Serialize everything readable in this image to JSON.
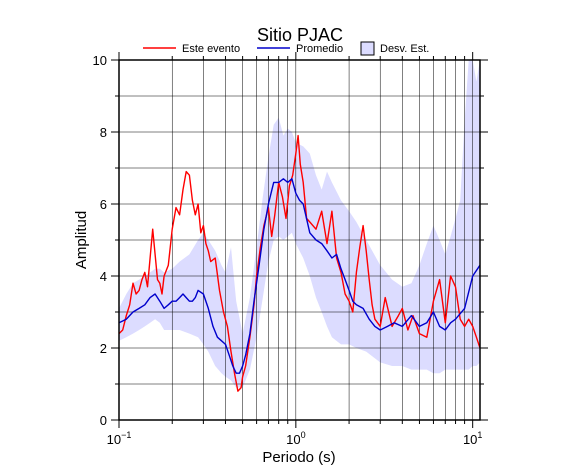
{
  "chart_data": {
    "type": "line",
    "title": "Sitio PJAC",
    "xlabel": "Periodo (s)",
    "ylabel": "Amplitud",
    "xscale": "log",
    "xlim": [
      0.1,
      11
    ],
    "ylim": [
      0,
      10
    ],
    "grid": true,
    "legend_position": "top-center",
    "x_tick_labels": [
      {
        "value": 0.1,
        "base": "10",
        "exp": "−1"
      },
      {
        "value": 1,
        "base": "10",
        "exp": "0"
      },
      {
        "value": 10,
        "base": "10",
        "exp": "1"
      }
    ],
    "y_ticks": [
      0,
      2,
      4,
      6,
      8,
      10
    ],
    "legend": [
      {
        "label": "Este evento",
        "kind": "line",
        "color": "#ff0000"
      },
      {
        "label": "Promedio",
        "kind": "line",
        "color": "#0000cc"
      },
      {
        "label": "Desv. Est.",
        "kind": "area",
        "color": "#dcdcff"
      }
    ],
    "series": [
      {
        "name": "Este evento",
        "color": "#ff0000",
        "x": [
          0.1,
          0.105,
          0.11,
          0.115,
          0.12,
          0.125,
          0.13,
          0.135,
          0.14,
          0.145,
          0.15,
          0.155,
          0.16,
          0.165,
          0.17,
          0.175,
          0.18,
          0.19,
          0.2,
          0.21,
          0.22,
          0.23,
          0.24,
          0.25,
          0.26,
          0.27,
          0.28,
          0.29,
          0.3,
          0.31,
          0.32,
          0.33,
          0.35,
          0.37,
          0.39,
          0.41,
          0.43,
          0.45,
          0.47,
          0.49,
          0.5,
          0.52,
          0.55,
          0.58,
          0.6,
          0.63,
          0.66,
          0.7,
          0.73,
          0.76,
          0.8,
          0.84,
          0.88,
          0.92,
          0.96,
          1.0,
          1.03,
          1.06,
          1.1,
          1.15,
          1.2,
          1.3,
          1.4,
          1.5,
          1.6,
          1.7,
          1.8,
          1.9,
          2.0,
          2.1,
          2.2,
          2.3,
          2.4,
          2.5,
          2.6,
          2.7,
          2.8,
          3.0,
          3.2,
          3.5,
          3.8,
          4.0,
          4.3,
          4.6,
          5.0,
          5.5,
          6.0,
          6.5,
          7.0,
          7.5,
          8.0,
          8.5,
          9.0,
          9.5,
          10.0,
          10.5,
          11.0
        ],
        "y": [
          2.4,
          2.5,
          2.9,
          3.2,
          3.8,
          3.5,
          3.6,
          3.9,
          4.1,
          3.7,
          4.5,
          5.3,
          4.6,
          3.9,
          3.8,
          3.5,
          4.0,
          4.3,
          5.3,
          5.9,
          5.7,
          6.4,
          6.9,
          6.8,
          6.1,
          5.7,
          6.0,
          5.2,
          5.4,
          4.9,
          4.7,
          4.4,
          4.5,
          3.6,
          3.0,
          2.6,
          1.9,
          1.3,
          0.8,
          0.9,
          1.2,
          1.5,
          2.3,
          3.2,
          4.0,
          4.8,
          5.4,
          5.9,
          5.1,
          5.7,
          6.6,
          6.2,
          5.6,
          6.5,
          6.8,
          7.4,
          7.9,
          7.1,
          6.6,
          5.6,
          5.5,
          5.3,
          5.8,
          4.9,
          5.8,
          4.5,
          4.1,
          3.5,
          3.3,
          3.0,
          4.1,
          4.8,
          5.4,
          4.7,
          3.9,
          3.2,
          2.8,
          2.6,
          3.4,
          2.6,
          2.9,
          3.1,
          2.5,
          2.9,
          2.4,
          2.3,
          3.3,
          3.9,
          2.7,
          4.0,
          3.7,
          2.8,
          2.6,
          2.8,
          2.6,
          2.3,
          2.0
        ]
      },
      {
        "name": "Promedio",
        "color": "#0000cc",
        "x": [
          0.1,
          0.11,
          0.12,
          0.13,
          0.14,
          0.15,
          0.16,
          0.17,
          0.18,
          0.19,
          0.2,
          0.21,
          0.22,
          0.23,
          0.24,
          0.25,
          0.26,
          0.27,
          0.28,
          0.3,
          0.32,
          0.34,
          0.36,
          0.38,
          0.4,
          0.42,
          0.44,
          0.46,
          0.48,
          0.5,
          0.52,
          0.55,
          0.58,
          0.62,
          0.66,
          0.7,
          0.75,
          0.8,
          0.85,
          0.9,
          0.95,
          1.0,
          1.05,
          1.1,
          1.2,
          1.3,
          1.4,
          1.5,
          1.6,
          1.7,
          1.8,
          1.9,
          2.0,
          2.1,
          2.2,
          2.4,
          2.6,
          2.8,
          3.0,
          3.3,
          3.6,
          4.0,
          4.5,
          5.0,
          5.5,
          6.0,
          6.5,
          7.0,
          7.5,
          8.0,
          9.0,
          10.0,
          11.0
        ],
        "y": [
          2.7,
          2.8,
          3.0,
          3.1,
          3.2,
          3.4,
          3.5,
          3.3,
          3.1,
          3.2,
          3.3,
          3.3,
          3.4,
          3.5,
          3.4,
          3.3,
          3.3,
          3.4,
          3.6,
          3.5,
          3.1,
          2.6,
          2.3,
          2.2,
          2.1,
          1.8,
          1.5,
          1.3,
          1.3,
          1.5,
          1.8,
          2.4,
          3.3,
          4.3,
          5.3,
          6.0,
          6.6,
          6.6,
          6.7,
          6.6,
          6.7,
          6.3,
          6.1,
          6.0,
          5.2,
          5.0,
          4.9,
          4.7,
          4.5,
          4.6,
          4.2,
          3.9,
          3.6,
          3.3,
          3.2,
          3.1,
          2.8,
          2.6,
          2.5,
          2.6,
          2.7,
          2.6,
          2.9,
          2.6,
          2.7,
          3.0,
          2.6,
          2.5,
          2.7,
          2.8,
          3.1,
          4.0,
          4.3
        ]
      },
      {
        "name": "Desv. Est.",
        "kind": "band",
        "color": "#dcdcff",
        "x": [
          0.1,
          0.11,
          0.12,
          0.13,
          0.14,
          0.15,
          0.16,
          0.17,
          0.18,
          0.2,
          0.22,
          0.25,
          0.28,
          0.3,
          0.32,
          0.35,
          0.38,
          0.4,
          0.43,
          0.46,
          0.5,
          0.55,
          0.6,
          0.65,
          0.7,
          0.75,
          0.8,
          0.85,
          0.9,
          0.95,
          1.0,
          1.1,
          1.2,
          1.3,
          1.4,
          1.5,
          1.6,
          1.8,
          2.0,
          2.2,
          2.5,
          3.0,
          3.5,
          4.0,
          4.5,
          5.0,
          5.5,
          6.0,
          6.5,
          7.0,
          7.5,
          8.0,
          8.5,
          9.0,
          9.5,
          10.0,
          10.5,
          11.0
        ],
        "upper": [
          3.1,
          3.5,
          3.8,
          3.9,
          4.0,
          4.1,
          4.2,
          4.2,
          4.1,
          4.2,
          4.4,
          4.6,
          5.0,
          5.2,
          5.0,
          4.7,
          4.3,
          4.1,
          4.8,
          3.3,
          2.4,
          3.4,
          4.8,
          6.2,
          7.3,
          8.2,
          8.4,
          7.9,
          8.1,
          8.0,
          7.7,
          7.6,
          7.4,
          6.8,
          6.4,
          6.9,
          6.6,
          6.1,
          5.8,
          5.5,
          5.0,
          4.3,
          3.9,
          3.7,
          3.8,
          4.3,
          4.9,
          5.4,
          5.0,
          4.6,
          5.1,
          5.6,
          6.1,
          8.3,
          10.0,
          10.0,
          9.4,
          10.0
        ],
        "lower": [
          2.2,
          2.3,
          2.4,
          2.5,
          2.6,
          2.7,
          2.8,
          2.7,
          2.5,
          2.5,
          2.5,
          2.4,
          2.3,
          2.1,
          1.9,
          1.5,
          1.3,
          1.2,
          1.1,
          0.9,
          0.9,
          1.4,
          2.3,
          3.4,
          4.4,
          5.0,
          5.1,
          5.0,
          5.1,
          5.2,
          4.9,
          4.5,
          4.0,
          3.4,
          3.0,
          2.6,
          2.3,
          2.1,
          2.1,
          2.0,
          1.9,
          1.6,
          1.5,
          1.5,
          1.4,
          1.4,
          1.4,
          1.3,
          1.3,
          1.4,
          1.4,
          1.4,
          1.4,
          1.4,
          1.4,
          1.5,
          1.5,
          1.6
        ]
      }
    ]
  }
}
